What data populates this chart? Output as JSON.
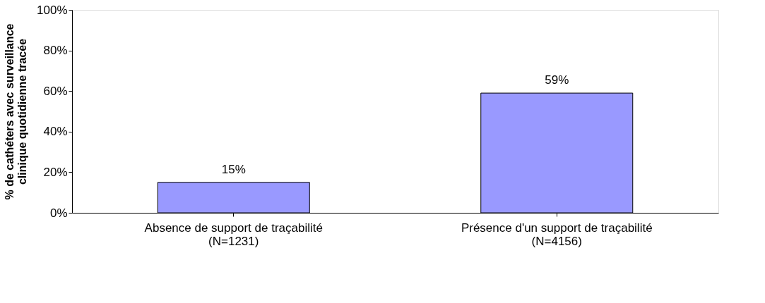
{
  "chart_data": {
    "type": "bar",
    "ylabel": "% de cathéters avec surveillance\nclinique quotidienne tracée",
    "categories": [
      "Absence de support de traçabilité\n(N=1231)",
      "Présence d'un support de traçabilité\n(N=4156)"
    ],
    "values": [
      15,
      59
    ],
    "value_labels": [
      "15%",
      "59%"
    ],
    "color": "#9999ff",
    "ylim": [
      0,
      100
    ],
    "yticks": [
      {
        "value": 0,
        "label": "0%"
      },
      {
        "value": 20,
        "label": "20%"
      },
      {
        "value": 40,
        "label": "40%"
      },
      {
        "value": 60,
        "label": "60%"
      },
      {
        "value": 80,
        "label": "80%"
      },
      {
        "value": 100,
        "label": "100%"
      }
    ],
    "grid": false
  }
}
